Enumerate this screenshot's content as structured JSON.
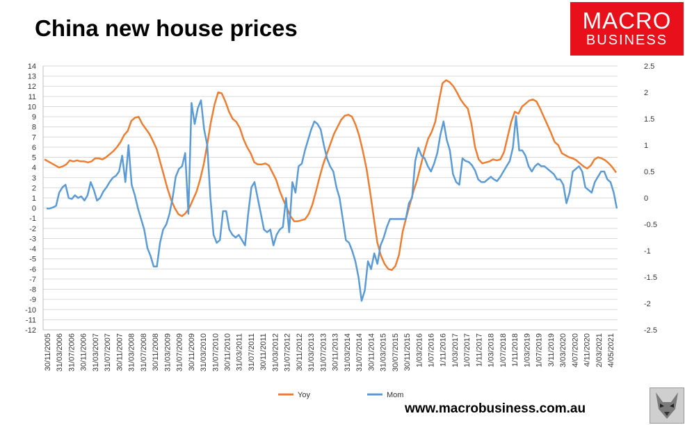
{
  "title": "China new house prices",
  "logo": {
    "line1": "MACRO",
    "line2": "BUSINESS",
    "bg": "#e8101a"
  },
  "footer_url": "www.macrobusiness.com.au",
  "colors": {
    "yoy": "#ed7d31",
    "mom": "#5b9bd5",
    "grid": "#d9d9d9"
  },
  "chart_data": {
    "type": "line",
    "title": "China new house prices",
    "left_axis": {
      "min": -12,
      "max": 14,
      "step": 1,
      "ticks": [
        "-12",
        "-11",
        "-10",
        "-9",
        "-8",
        "-7",
        "-6",
        "-5",
        "-4",
        "-3",
        "-2",
        "-1",
        "0",
        "1",
        "2",
        "3",
        "4",
        "5",
        "6",
        "7",
        "8",
        "9",
        "10",
        "11",
        "12",
        "13",
        "14"
      ]
    },
    "right_axis": {
      "min": -2.5,
      "max": 2.5,
      "step": 0.5,
      "ticks": [
        "-2.5",
        "-2",
        "-1.5",
        "-1",
        "-0.5",
        "0",
        "0.5",
        "1",
        "1.5",
        "2",
        "2.5"
      ]
    },
    "x_tick_labels": [
      "30/11/2005",
      "31/03/2006",
      "31/07/2006",
      "30/11/2006",
      "31/03/2007",
      "31/07/2007",
      "30/11/2007",
      "31/03/2008",
      "31/07/2008",
      "30/11/2008",
      "31/03/2009",
      "31/07/2009",
      "30/11/2009",
      "31/03/2010",
      "31/07/2010",
      "30/11/2010",
      "31/03/2011",
      "31/07/2011",
      "30/11/2011",
      "31/03/2012",
      "31/07/2012",
      "30/11/2012",
      "31/03/2013",
      "31/07/2013",
      "30/11/2013",
      "31/03/2014",
      "31/07/2014",
      "30/11/2014",
      "31/03/2015",
      "30/07/2015",
      "30/11/2015",
      "1/03/2016",
      "1/07/2016",
      "1/11/2016",
      "1/03/2017",
      "1/07/2017",
      "1/11/2017",
      "1/03/2018",
      "1/07/2018",
      "1/11/2018",
      "1/03/2019",
      "1/07/2019",
      "3/11/2019",
      "3/03/2020",
      "4/07/2020",
      "4/11/2020",
      "2/03/2021",
      "4/05/2021"
    ],
    "grid": true,
    "legend_position": "bottom",
    "series": [
      {
        "name": "Yoy",
        "axis": "left",
        "color": "#ed7d31",
        "values": [
          4.8,
          4.6,
          4.4,
          4.2,
          4.0,
          4.1,
          4.3,
          4.7,
          4.6,
          4.7,
          4.6,
          4.6,
          4.5,
          4.6,
          4.9,
          4.9,
          4.8,
          5.0,
          5.3,
          5.6,
          6.0,
          6.5,
          7.2,
          7.6,
          8.6,
          8.9,
          9.0,
          8.3,
          7.8,
          7.3,
          6.6,
          5.8,
          4.5,
          3.2,
          1.9,
          0.8,
          0.0,
          -0.6,
          -0.8,
          -0.5,
          0.0,
          0.8,
          1.6,
          2.8,
          4.3,
          6.3,
          8.5,
          10.2,
          11.4,
          11.3,
          10.5,
          9.5,
          8.8,
          8.5,
          7.9,
          6.8,
          6.0,
          5.4,
          4.5,
          4.3,
          4.3,
          4.4,
          4.2,
          3.5,
          2.8,
          1.7,
          0.8,
          0.0,
          -0.8,
          -1.3,
          -1.3,
          -1.2,
          -1.1,
          -0.6,
          0.3,
          1.6,
          3.0,
          4.3,
          5.3,
          6.3,
          7.3,
          8.0,
          8.7,
          9.1,
          9.2,
          9.0,
          8.2,
          7.1,
          5.6,
          3.9,
          1.6,
          -0.9,
          -3.4,
          -4.7,
          -5.5,
          -6.0,
          -6.1,
          -5.7,
          -4.6,
          -2.3,
          -0.9,
          0.4,
          1.7,
          2.8,
          4.2,
          5.6,
          6.8,
          7.5,
          8.5,
          10.5,
          12.3,
          12.6,
          12.4,
          12.0,
          11.4,
          10.7,
          10.2,
          9.8,
          8.3,
          6.0,
          4.8,
          4.4,
          4.5,
          4.6,
          4.8,
          4.7,
          4.8,
          5.5,
          7.0,
          8.5,
          9.5,
          9.3,
          10.0,
          10.3,
          10.6,
          10.7,
          10.5,
          9.8,
          9.0,
          8.2,
          7.4,
          6.5,
          6.2,
          5.4,
          5.2,
          5.0,
          4.9,
          4.7,
          4.4,
          4.1,
          3.9,
          4.2,
          4.8,
          5.0,
          4.9,
          4.7,
          4.4,
          4.0,
          3.5
        ]
      },
      {
        "name": "Mom",
        "axis": "right",
        "color": "#5b9bd5",
        "values": [
          -0.2,
          -0.2,
          -0.18,
          -0.15,
          0.1,
          0.2,
          0.25,
          0.0,
          -0.02,
          0.05,
          0.0,
          0.03,
          -0.05,
          0.05,
          0.3,
          0.15,
          -0.05,
          0.0,
          0.12,
          0.2,
          0.3,
          0.38,
          0.42,
          0.5,
          0.8,
          0.3,
          1.0,
          0.25,
          0.05,
          -0.2,
          -0.4,
          -0.6,
          -0.95,
          -1.1,
          -1.3,
          -1.3,
          -0.85,
          -0.6,
          -0.5,
          -0.3,
          0.0,
          0.4,
          0.55,
          0.6,
          0.85,
          -0.3,
          1.8,
          1.4,
          1.7,
          1.85,
          1.3,
          1.0,
          0.0,
          -0.7,
          -0.85,
          -0.8,
          -0.25,
          -0.25,
          -0.6,
          -0.7,
          -0.75,
          -0.7,
          -0.8,
          -0.9,
          -0.3,
          0.2,
          0.3,
          0.0,
          -0.3,
          -0.6,
          -0.65,
          -0.6,
          -0.9,
          -0.7,
          -0.6,
          -0.55,
          0.0,
          -0.65,
          0.3,
          0.1,
          0.6,
          0.65,
          0.9,
          1.1,
          1.3,
          1.45,
          1.4,
          1.3,
          1.0,
          0.75,
          0.6,
          0.5,
          0.2,
          0.0,
          -0.4,
          -0.8,
          -0.85,
          -1.0,
          -1.2,
          -1.5,
          -1.95,
          -1.75,
          -1.2,
          -1.35,
          -1.05,
          -1.25,
          -0.9,
          -0.75,
          -0.55,
          -0.4,
          -0.4,
          -0.4,
          -0.4,
          -0.4,
          -0.4,
          -0.1,
          0.0,
          0.7,
          0.95,
          0.8,
          0.75,
          0.6,
          0.5,
          0.65,
          0.85,
          1.2,
          1.45,
          1.1,
          0.9,
          0.45,
          0.3,
          0.25,
          0.75,
          0.7,
          0.68,
          0.62,
          0.52,
          0.35,
          0.3,
          0.3,
          0.35,
          0.4,
          0.35,
          0.32,
          0.4,
          0.5,
          0.6,
          0.7,
          0.95,
          1.55,
          0.9,
          0.9,
          0.8,
          0.6,
          0.5,
          0.6,
          0.65,
          0.6,
          0.6,
          0.55,
          0.5,
          0.45,
          0.35,
          0.35,
          0.25,
          -0.1,
          0.1,
          0.5,
          0.55,
          0.6,
          0.5,
          0.2,
          0.15,
          0.1,
          0.3,
          0.4,
          0.5,
          0.5,
          0.35,
          0.3,
          0.1,
          -0.2
        ]
      }
    ]
  }
}
